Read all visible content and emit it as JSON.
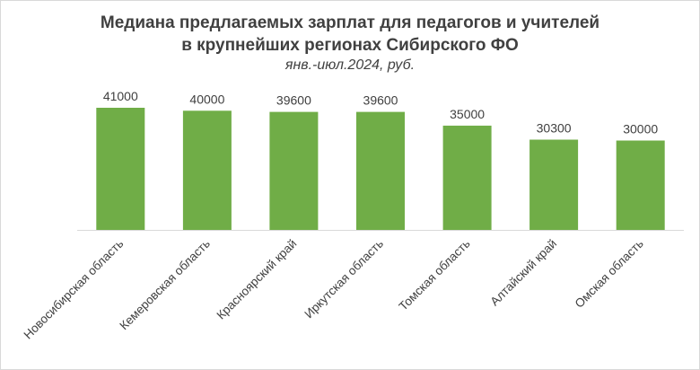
{
  "chart_data": {
    "type": "bar",
    "title_line1": "Медиана предлагаемых зарплат для педагогов и учителей",
    "title_line2": "в крупнейших регионах Сибирского ФО",
    "subtitle": "янв.-июл.2024, руб.",
    "categories": [
      "Новосибирская область",
      "Кемеровская область",
      "Красноярский край",
      "Иркутская область",
      "Томская область",
      "Алтайский край",
      "Омская область"
    ],
    "values": [
      41000,
      40000,
      39600,
      39600,
      35000,
      30300,
      30000
    ],
    "data_labels": [
      "41000",
      "40000",
      "39600",
      "39600",
      "35000",
      "30300",
      "30000"
    ],
    "ylim": [
      0,
      45000
    ],
    "grid": false,
    "legend": "none",
    "bar_color": "#70ad47",
    "text_color": "#404040",
    "axis_color": "#d9d9d9"
  }
}
